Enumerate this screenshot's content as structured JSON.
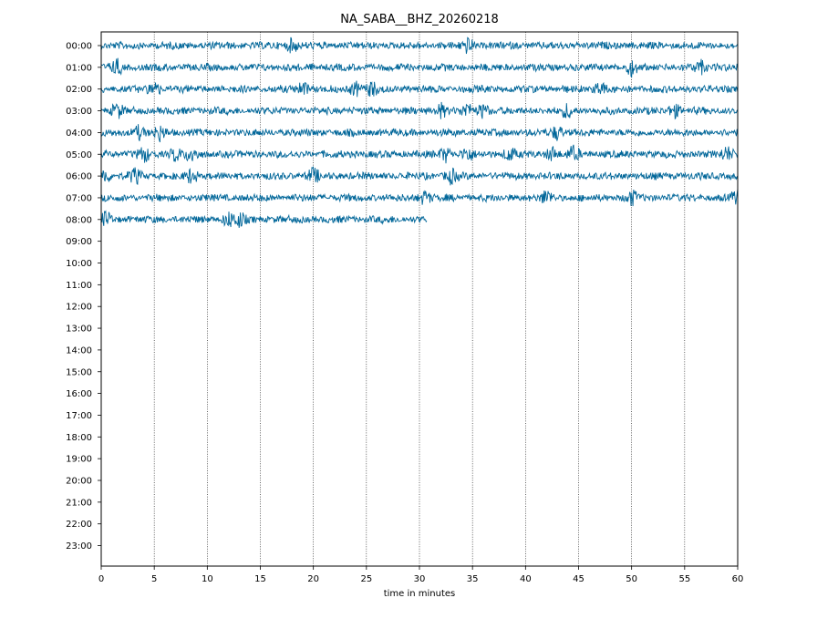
{
  "chart_data": {
    "type": "line",
    "title": "NA_SABA__BHZ_20260218",
    "xlabel": "time in minutes",
    "ylabel": "",
    "xlim": [
      0,
      60
    ],
    "x_ticks": [
      0,
      5,
      10,
      15,
      20,
      25,
      30,
      35,
      40,
      45,
      50,
      55,
      60
    ],
    "grid": "vertical dotted lines at each 5-minute tick",
    "trace_color": "#006699",
    "rows": [
      {
        "label": "00:00",
        "recorded_minutes": [
          0,
          60
        ],
        "events_min": [
          18,
          34.5
        ]
      },
      {
        "label": "01:00",
        "recorded_minutes": [
          0,
          60
        ],
        "events_min": [
          1.5,
          50,
          56.5
        ]
      },
      {
        "label": "02:00",
        "recorded_minutes": [
          0,
          60
        ],
        "events_min": [
          5,
          19,
          24,
          25.5,
          47
        ]
      },
      {
        "label": "03:00",
        "recorded_minutes": [
          0,
          60
        ],
        "events_min": [
          1.5,
          32,
          34.5,
          36,
          44,
          54
        ]
      },
      {
        "label": "04:00",
        "recorded_minutes": [
          0,
          60
        ],
        "events_min": [
          3.5,
          5.5,
          43
        ]
      },
      {
        "label": "05:00",
        "recorded_minutes": [
          0,
          60
        ],
        "events_min": [
          4,
          7,
          8.5,
          32.5,
          34.5,
          38.5,
          42.5,
          44.5,
          59
        ]
      },
      {
        "label": "06:00",
        "recorded_minutes": [
          0,
          60
        ],
        "events_min": [
          0.3,
          3.2,
          8.5,
          20,
          33
        ]
      },
      {
        "label": "07:00",
        "recorded_minutes": [
          0,
          60
        ],
        "events_min": [
          30.5,
          42,
          50,
          60
        ]
      },
      {
        "label": "08:00",
        "recorded_minutes": [
          0,
          30.7
        ],
        "events_min": [
          0.5,
          12,
          13
        ]
      },
      {
        "label": "09:00",
        "recorded_minutes": [],
        "events_min": []
      },
      {
        "label": "10:00",
        "recorded_minutes": [],
        "events_min": []
      },
      {
        "label": "11:00",
        "recorded_minutes": [],
        "events_min": []
      },
      {
        "label": "12:00",
        "recorded_minutes": [],
        "events_min": []
      },
      {
        "label": "13:00",
        "recorded_minutes": [],
        "events_min": []
      },
      {
        "label": "14:00",
        "recorded_minutes": [],
        "events_min": []
      },
      {
        "label": "15:00",
        "recorded_minutes": [],
        "events_min": []
      },
      {
        "label": "16:00",
        "recorded_minutes": [],
        "events_min": []
      },
      {
        "label": "17:00",
        "recorded_minutes": [],
        "events_min": []
      },
      {
        "label": "18:00",
        "recorded_minutes": [],
        "events_min": []
      },
      {
        "label": "19:00",
        "recorded_minutes": [],
        "events_min": []
      },
      {
        "label": "20:00",
        "recorded_minutes": [],
        "events_min": []
      },
      {
        "label": "21:00",
        "recorded_minutes": [],
        "events_min": []
      },
      {
        "label": "22:00",
        "recorded_minutes": [],
        "events_min": []
      },
      {
        "label": "23:00",
        "recorded_minutes": [],
        "events_min": []
      }
    ]
  }
}
